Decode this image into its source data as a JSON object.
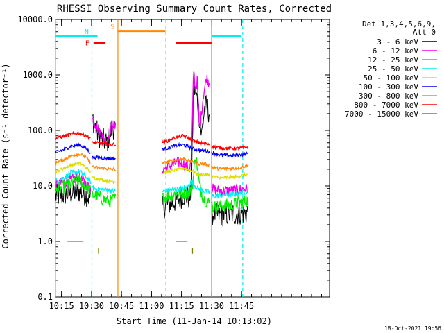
{
  "chart_data": {
    "type": "line",
    "title": "RHESSI Observing Summary Count Rates, Corrected",
    "ylabel": "Corrected Count Rate (s⁻¹ detector⁻¹)",
    "xlabel": "Start Time (11-Jan-14 10:13:02)",
    "yscale": "log",
    "ylim": [
      0.1,
      10000
    ],
    "xlim_min": [
      612,
      749
    ],
    "y_ticks": [
      {
        "v": 10000,
        "label": "10000.0"
      },
      {
        "v": 1000,
        "label": "1000.0"
      },
      {
        "v": 100,
        "label": "100.0"
      },
      {
        "v": 10,
        "label": "10.0"
      },
      {
        "v": 1,
        "label": "1.0"
      },
      {
        "v": 0.1,
        "label": "0.1"
      }
    ],
    "x_ticks": [
      {
        "v": 615,
        "label": "10:15"
      },
      {
        "v": 630,
        "label": "10:30"
      },
      {
        "v": 645,
        "label": "10:45"
      },
      {
        "v": 660,
        "label": "11:00"
      },
      {
        "v": 675,
        "label": "11:15"
      },
      {
        "v": 690,
        "label": "11:30"
      },
      {
        "v": 705,
        "label": "11:45"
      }
    ],
    "legend_title": [
      "Det 1,3,4,5,6,9,",
      "Att 0"
    ],
    "series": [
      {
        "name": "3 - 6 keV",
        "color": "#000000",
        "noise": 0.22,
        "segments": [
          {
            "x": [
              612,
              616,
              620,
              624,
              627,
              629.5
            ],
            "y": [
              6.5,
              7.0,
              7.5,
              8.0,
              7.0,
              6.0
            ]
          },
          {
            "x": [
              630.5,
              633,
              635,
              637.5,
              639,
              640.5,
              642
            ],
            "y": [
              165,
              90,
              70,
              60,
              80,
              120,
              95
            ]
          },
          {
            "x": [
              665.5,
              667,
              670,
              673,
              676,
              677.5,
              679,
              680,
              681,
              682,
              683,
              685,
              686.5,
              687.5,
              689
            ],
            "y": [
              4,
              4.5,
              5,
              5.5,
              7,
              6.5,
              6,
              8,
              700,
              450,
              350,
              80,
              250,
              280,
              200
            ]
          },
          {
            "x": [
              690,
              692,
              695,
              700,
              704,
              708
            ],
            "y": [
              3.2,
              3.0,
              3.0,
              3.1,
              3.2,
              3.3
            ]
          }
        ]
      },
      {
        "name": "6 - 12 keV",
        "color": "#ee00ee",
        "noise": 0.1,
        "segments": [
          {
            "x": [
              612,
              616,
              620,
              624,
              627,
              629.5
            ],
            "y": [
              10,
              11.5,
              13,
              14,
              11,
              9
            ]
          },
          {
            "x": [
              630.5,
              633,
              635,
              637.5,
              639,
              640.5,
              642
            ],
            "y": [
              160,
              110,
              85,
              65,
              90,
              140,
              110
            ]
          },
          {
            "x": [
              665.5,
              668,
              671,
              674,
              676,
              677.5,
              679,
              680,
              681,
              682,
              682.8,
              684,
              686,
              687.5,
              689
            ],
            "y": [
              20,
              22,
              25,
              27,
              25,
              22,
              20,
              30,
              1350,
              500,
              800,
              100,
              450,
              900,
              700
            ]
          },
          {
            "x": [
              690,
              692,
              695,
              700,
              704,
              708
            ],
            "y": [
              9,
              8.5,
              8.3,
              8.3,
              8.6,
              9
            ]
          }
        ]
      },
      {
        "name": "12 - 25 keV",
        "color": "#00ee00",
        "noise": 0.12,
        "segments": [
          {
            "x": [
              612,
              616,
              620,
              624,
              627,
              629.5
            ],
            "y": [
              8,
              9.5,
              11,
              12.5,
              10,
              8
            ]
          },
          {
            "x": [
              630.5,
              633,
              635,
              637.5,
              639,
              640.5,
              642
            ],
            "y": [
              7,
              6.5,
              6,
              5.5,
              5.2,
              5.5,
              6
            ]
          },
          {
            "x": [
              665.5,
              668,
              671,
              674,
              676,
              678,
              680,
              681,
              682,
              683,
              684,
              686,
              688,
              689
            ],
            "y": [
              6,
              6.5,
              7,
              7.5,
              7.5,
              7.5,
              8,
              15,
              40,
              20,
              10,
              6,
              5,
              5
            ]
          },
          {
            "x": [
              690,
              692,
              695,
              700,
              704,
              708
            ],
            "y": [
              4,
              4.2,
              4.4,
              4.6,
              5,
              5.5
            ]
          }
        ]
      },
      {
        "name": "25 - 50 keV",
        "color": "#00eeee",
        "noise": 0.05,
        "segments": [
          {
            "x": [
              612,
              616,
              620,
              624,
              627,
              629.5
            ],
            "y": [
              12,
              14,
              17,
              18,
              15,
              12
            ]
          },
          {
            "x": [
              630.5,
              633,
              635,
              637.5,
              639,
              640.5,
              642
            ],
            "y": [
              9,
              8.8,
              8.6,
              8.5,
              8.3,
              8.2,
              8
            ]
          },
          {
            "x": [
              665.5,
              668,
              671,
              674,
              676,
              678,
              679,
              680,
              681,
              682,
              683,
              685,
              687,
              689
            ],
            "y": [
              8,
              8.2,
              8.5,
              8.8,
              9,
              9.5,
              11,
              12,
              11,
              10,
              9,
              8.5,
              8,
              7.8
            ]
          },
          {
            "x": [
              690,
              692,
              695,
              700,
              704,
              708
            ],
            "y": [
              6.5,
              6.6,
              6.8,
              7,
              7.4,
              8
            ]
          }
        ]
      },
      {
        "name": "50 - 100 keV",
        "color": "#dddd00",
        "noise": 0.03,
        "segments": [
          {
            "x": [
              612,
              616,
              620,
              624,
              627,
              629.5
            ],
            "y": [
              18,
              21,
              24,
              26,
              22,
              18
            ]
          },
          {
            "x": [
              630.5,
              633,
              635,
              637.5,
              639,
              640.5,
              642
            ],
            "y": [
              14,
              13.5,
              13,
              12.5,
              12.2,
              12,
              12
            ]
          },
          {
            "x": [
              665.5,
              668,
              671,
              674,
              676,
              678,
              680,
              682,
              684,
              686,
              689
            ],
            "y": [
              17,
              18,
              19,
              20,
              21,
              20,
              19,
              17,
              16,
              16,
              16
            ]
          },
          {
            "x": [
              690,
              692,
              695,
              700,
              704,
              708
            ],
            "y": [
              15,
              14.5,
              14,
              14.3,
              15,
              16
            ]
          }
        ]
      },
      {
        "name": "100 - 300 keV",
        "color": "#0000ff",
        "noise": 0.03,
        "segments": [
          {
            "x": [
              612,
              616,
              620,
              624,
              627,
              629.5
            ],
            "y": [
              40,
              45,
              52,
              55,
              48,
              40
            ]
          },
          {
            "x": [
              630.5,
              633,
              635,
              637.5,
              639,
              640.5,
              642
            ],
            "y": [
              33,
              32.5,
              32,
              31.5,
              31,
              31,
              31
            ]
          },
          {
            "x": [
              665.5,
              668,
              671,
              674,
              676,
              678,
              680,
              682,
              684,
              686,
              689
            ],
            "y": [
              45,
              48,
              52,
              55,
              55,
              52,
              48,
              45,
              44,
              43,
              42
            ]
          },
          {
            "x": [
              690,
              692,
              695,
              700,
              704,
              708
            ],
            "y": [
              40,
              38,
              36,
              35,
              36,
              38
            ]
          }
        ]
      },
      {
        "name": "300 - 800 keV",
        "color": "#ff8800",
        "noise": 0.03,
        "segments": [
          {
            "x": [
              612,
              616,
              620,
              624,
              627,
              629.5
            ],
            "y": [
              26,
              30,
              35,
              38,
              33,
              27
            ]
          },
          {
            "x": [
              630.5,
              633,
              635,
              637.5,
              639,
              640.5,
              642
            ],
            "y": [
              22,
              21.5,
              21,
              20.5,
              20,
              20,
              20
            ]
          },
          {
            "x": [
              665.5,
              668,
              671,
              674,
              676,
              678,
              680,
              682,
              684,
              686,
              689
            ],
            "y": [
              25,
              27,
              29,
              30,
              31,
              29,
              27,
              26,
              25,
              25,
              24
            ]
          },
          {
            "x": [
              690,
              692,
              695,
              700,
              704,
              708
            ],
            "y": [
              22,
              21,
              20.5,
              20.5,
              21.5,
              23
            ]
          }
        ]
      },
      {
        "name": "800 - 7000 keV",
        "color": "#ff0000",
        "noise": 0.03,
        "segments": [
          {
            "x": [
              612,
              616,
              620,
              624,
              627,
              629.5
            ],
            "y": [
              72,
              78,
              86,
              90,
              82,
              72
            ]
          },
          {
            "x": [
              630.5,
              633,
              635,
              637.5,
              639,
              640.5,
              642
            ],
            "y": [
              60,
              59,
              58,
              57,
              56,
              56,
              56
            ]
          },
          {
            "x": [
              665.5,
              668,
              671,
              674,
              676,
              678,
              680,
              682,
              684,
              686,
              689
            ],
            "y": [
              60,
              65,
              72,
              78,
              80,
              75,
              68,
              62,
              60,
              58,
              57
            ]
          },
          {
            "x": [
              690,
              692,
              695,
              700,
              704,
              708
            ],
            "y": [
              52,
              50,
              48,
              47,
              48,
              50
            ]
          }
        ]
      },
      {
        "name": "7000 - 15000 keV",
        "color": "#808000",
        "noise": 0.0,
        "segments": [
          {
            "x": [
              618,
              626
            ],
            "y": [
              1,
              1
            ]
          },
          {
            "x": [
              672,
              678
            ],
            "y": [
              1,
              1
            ]
          }
        ]
      }
    ],
    "extra_marks": [
      {
        "label": "olive-tick-1",
        "x": 633.5,
        "y": [
          0.6,
          0.75
        ],
        "color": "#808000"
      },
      {
        "label": "olive-tick-2",
        "x": 680.5,
        "y": [
          0.6,
          0.75
        ],
        "color": "#808000"
      }
    ],
    "state_bars": [
      {
        "label": "",
        "color": "#00eeee",
        "x0": 612,
        "x1": 630,
        "y": 5000
      },
      {
        "label": "N",
        "color": "#00eeee",
        "x0": 630,
        "x1": 633,
        "y": 5000
      },
      {
        "label": "",
        "color": "#00eeee",
        "x0": 690,
        "x1": 705,
        "y": 5000
      },
      {
        "label": "F",
        "color": "#ff0000",
        "x0": 631,
        "x1": 637,
        "y": 3800
      },
      {
        "label": "S",
        "color": "#ff8800",
        "x0": 643,
        "x1": 667,
        "y": 6200
      },
      {
        "label": "",
        "color": "#ff0000",
        "x0": 672,
        "x1": 690,
        "y": 3800
      }
    ],
    "vlines": [
      {
        "x": 612,
        "color": "#00eeee",
        "style": "solid"
      },
      {
        "x": 630.2,
        "color": "#00eeee",
        "style": "dashed"
      },
      {
        "x": 643.2,
        "color": "#ff8800",
        "style": "solid"
      },
      {
        "x": 667.2,
        "color": "#ff8800",
        "style": "dashed"
      },
      {
        "x": 690,
        "color": "#00eeee",
        "style": "solid"
      },
      {
        "x": 705.6,
        "color": "#00eeee",
        "style": "dashed"
      }
    ],
    "timestamp": "18-Oct-2021 19:56"
  }
}
